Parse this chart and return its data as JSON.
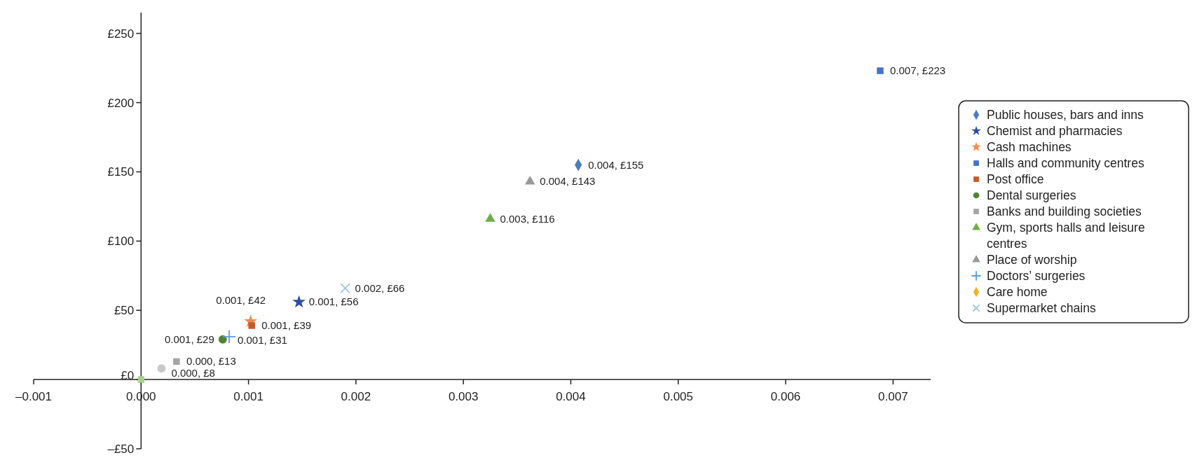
{
  "chart_data": {
    "type": "scatter",
    "legend": "right",
    "data_labels": false,
    "xlim": [
      -0.001,
      0.00735
    ],
    "ylim": [
      -50,
      265
    ],
    "xticks": [
      {
        "value": -0.001,
        "label": "–0.001"
      },
      {
        "value": 0,
        "label": "0.000"
      },
      {
        "value": 0.001,
        "label": "0.001"
      },
      {
        "value": 0.002,
        "label": "0.002"
      },
      {
        "value": 0.003,
        "label": "0.003"
      },
      {
        "value": 0.004,
        "label": "0.004"
      },
      {
        "value": 0.005,
        "label": "0.005"
      },
      {
        "value": 0.006,
        "label": "0.006"
      },
      {
        "value": 0.007,
        "label": "0.007"
      }
    ],
    "yticks": [
      {
        "value": -50,
        "label": "–£50"
      },
      {
        "value": 0,
        "label": "£0"
      },
      {
        "value": 50,
        "label": "£50"
      },
      {
        "value": 100,
        "label": "£100"
      },
      {
        "value": 150,
        "label": "£150"
      },
      {
        "value": 200,
        "label": "£200"
      },
      {
        "value": 250,
        "label": "£250"
      }
    ],
    "series": [
      {
        "name": "Public houses, bars and inns",
        "color": "#4a7ebb",
        "marker": "diamond",
        "x": [
          0.00407
        ],
        "values": [
          155
        ],
        "value_labels": [
          "0.004, £155"
        ]
      },
      {
        "name": "Chemist and pharmacies",
        "color": "#2f4e9e",
        "marker": "star",
        "x": [
          0.00147
        ],
        "values": [
          56
        ],
        "value_labels": [
          "0.001, £56"
        ]
      },
      {
        "name": "Cash machines",
        "color": "#f08a4b",
        "marker": "star",
        "x": [
          0.00102
        ],
        "values": [
          42
        ],
        "value_labels": [
          "0.001, £42"
        ]
      },
      {
        "name": "Halls and community centres",
        "color": "#4472c4",
        "marker": "square",
        "x": [
          0.00688
        ],
        "values": [
          223
        ],
        "value_labels": [
          "0.007, £223"
        ]
      },
      {
        "name": "Post office",
        "color": "#c55a28",
        "marker": "square",
        "x": [
          0.00103
        ],
        "values": [
          39
        ],
        "value_labels": [
          "0.001, £39"
        ]
      },
      {
        "name": "Dental surgeries",
        "color": "#548235",
        "marker": "circle",
        "x": [
          0.00076
        ],
        "values": [
          29
        ],
        "value_labels": [
          "0.001, £29"
        ]
      },
      {
        "name": "Banks and building societies",
        "color": "#a5a5a5",
        "marker": "square",
        "x": [
          0.00033
        ],
        "values": [
          13
        ],
        "value_labels": [
          "0.000, £13"
        ]
      },
      {
        "name": "Gym, sports halls and leisure centres",
        "color": "#70ad47",
        "marker": "triangle",
        "x": [
          0.00325
        ],
        "values": [
          116
        ],
        "value_labels": [
          "0.003, £116"
        ]
      },
      {
        "name": "Place of worship",
        "color": "#999999",
        "marker": "triangle",
        "x": [
          0.00362
        ],
        "values": [
          143
        ],
        "value_labels": [
          "0.004, £143"
        ]
      },
      {
        "name": "Doctors’ surgeries",
        "color": "#5b9bd5",
        "marker": "cross",
        "x": [
          0.00082
        ],
        "values": [
          31
        ],
        "value_labels": [
          "0.001, £31"
        ]
      },
      {
        "name": "Care home",
        "color": "#f0b323",
        "marker": "diamond",
        "x": [
          null
        ],
        "values": [
          null
        ],
        "value_labels": [
          null
        ]
      },
      {
        "name": "Supermarket chains",
        "color": "#9dc3e6",
        "marker": "x",
        "x": [
          0.0019
        ],
        "values": [
          66
        ],
        "value_labels": [
          "0.002, £66"
        ]
      },
      {
        "color": "#c8c8c8",
        "marker": "circle",
        "x": [
          0.00019
        ],
        "values": [
          8
        ],
        "value_labels": [
          "0.000, £8"
        ]
      },
      {
        "color": "#a9d18e",
        "marker": "square",
        "x": [
          0
        ],
        "values": [
          0
        ]
      }
    ]
  }
}
